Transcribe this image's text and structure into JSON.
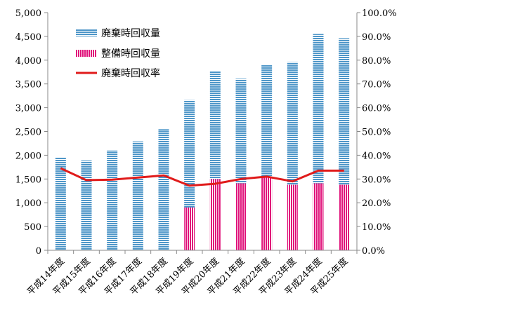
{
  "chart_data": {
    "type": "bar",
    "categories": [
      "平成14年度",
      "平成15年度",
      "平成16年度",
      "平成17年度",
      "平成18年度",
      "平成19年度",
      "平成20年度",
      "平成21年度",
      "平成22年度",
      "平成23年度",
      "平成24年度",
      "平成25年度"
    ],
    "series": [
      {
        "name": "廃棄時回収量",
        "type": "bar",
        "axis": "left",
        "color": "#4e96c8",
        "pattern": "horizontal-stripes",
        "values": [
          1960,
          1890,
          2100,
          2290,
          2550,
          2260,
          2270,
          2200,
          2370,
          2580,
          3140,
          3080
        ]
      },
      {
        "name": "整備時回収量",
        "type": "bar",
        "axis": "left",
        "color": "#e0117a",
        "pattern": "vertical-stripes",
        "values": [
          0,
          0,
          0,
          0,
          0,
          900,
          1500,
          1410,
          1530,
          1380,
          1410,
          1380
        ]
      },
      {
        "name": "廃棄時回収率",
        "type": "line",
        "axis": "right",
        "color": "#e01b1b",
        "values": [
          34.5,
          29.5,
          29.7,
          30.6,
          31.5,
          27.2,
          28.0,
          30.0,
          31.0,
          29.0,
          33.5,
          33.5
        ]
      }
    ],
    "stacked": true,
    "y_left": {
      "min": 0,
      "max": 5000,
      "step": 500,
      "tick_labels": [
        "0",
        "500",
        "1,000",
        "1,500",
        "2,000",
        "2,500",
        "3,000",
        "3,500",
        "4,000",
        "4,500",
        "5,000"
      ]
    },
    "y_right": {
      "min": 0,
      "max": 100,
      "step": 10,
      "tick_labels": [
        "0.0%",
        "10.0%",
        "20.0%",
        "30.0%",
        "40.0%",
        "50.0%",
        "60.0%",
        "70.0%",
        "80.0%",
        "90.0%",
        "100.0%"
      ]
    },
    "grid": false,
    "legend_position": "top-left",
    "title": "",
    "xlabel": "",
    "ylabel": ""
  }
}
